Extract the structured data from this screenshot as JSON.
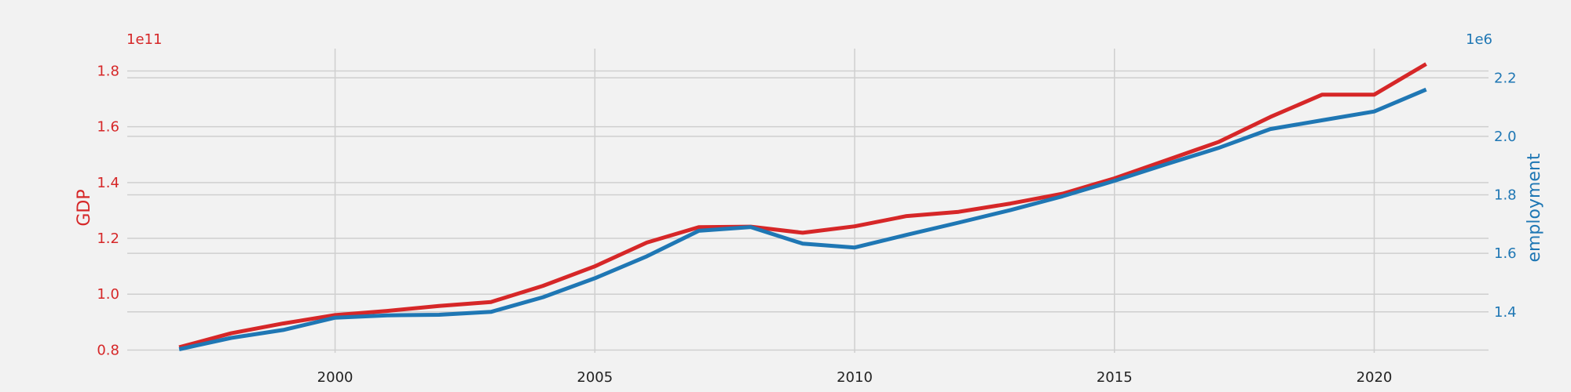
{
  "chart_data": {
    "type": "line",
    "title": "",
    "xlabel": "",
    "xlim": [
      1996,
      2022.2
    ],
    "x_ticks": [
      2000,
      2005,
      2010,
      2015,
      2020
    ],
    "x_tick_labels": [
      "2000",
      "2005",
      "2010",
      "2015",
      "2020"
    ],
    "grid": true,
    "colors": {
      "left": "#d62728",
      "right": "#1f77b4",
      "grid": "#cfcfcf",
      "background": "#f2f2f2"
    },
    "left_axis": {
      "label": "GDP",
      "offset_text": "1e11",
      "ylim": [
        0.79,
        1.88
      ],
      "ticks": [
        0.8,
        1.0,
        1.2,
        1.4,
        1.6,
        1.8
      ],
      "tick_labels": [
        "0.8",
        "1.0",
        "1.2",
        "1.4",
        "1.6",
        "1.8"
      ]
    },
    "right_axis": {
      "label": "employment",
      "offset_text": "1e6",
      "ylim": [
        1.26,
        2.3
      ],
      "ticks": [
        1.4,
        1.6,
        1.8,
        2.0,
        2.2
      ],
      "tick_labels": [
        "1.4",
        "1.6",
        "1.8",
        "2.0",
        "2.2"
      ]
    },
    "x": [
      1997,
      1998,
      1999,
      2000,
      2001,
      2002,
      2003,
      2004,
      2005,
      2006,
      2007,
      2008,
      2009,
      2010,
      2011,
      2012,
      2013,
      2014,
      2015,
      2016,
      2017,
      2018,
      2019,
      2020,
      2021
    ],
    "series": [
      {
        "name": "GDP",
        "axis": "left",
        "color": "#d62728",
        "values": [
          0.81,
          0.86,
          0.895,
          0.925,
          0.94,
          0.958,
          0.972,
          1.03,
          1.1,
          1.185,
          1.24,
          1.242,
          1.22,
          1.243,
          1.28,
          1.295,
          1.325,
          1.36,
          1.415,
          1.48,
          1.545,
          1.635,
          1.715,
          1.715,
          1.825
        ]
      },
      {
        "name": "employment",
        "axis": "right",
        "color": "#1f77b4",
        "values": [
          1.272,
          1.311,
          1.338,
          1.38,
          1.388,
          1.39,
          1.4,
          1.45,
          1.515,
          1.59,
          1.677,
          1.69,
          1.633,
          1.62,
          1.663,
          1.705,
          1.748,
          1.795,
          1.848,
          1.905,
          1.96,
          2.025,
          2.055,
          2.085,
          2.16
        ]
      }
    ]
  }
}
